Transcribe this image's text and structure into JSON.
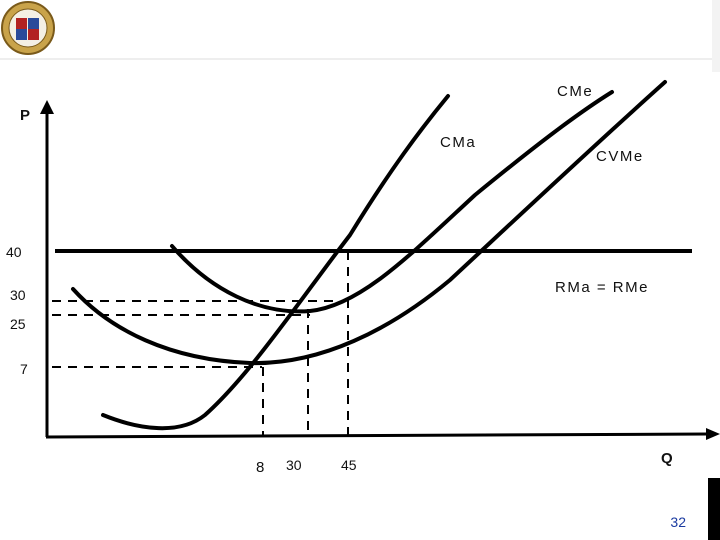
{
  "slide": {
    "page_number": "32",
    "logo": "university-seal-logo"
  },
  "diagram": {
    "axis_y_label": "P",
    "axis_x_label": "Q",
    "curves": {
      "cme_label": "CMe",
      "cma_label": "CMa",
      "cvme_label": "CVMe",
      "price_line_label": "RMa = RMe"
    },
    "price_ticks": [
      "40",
      "30",
      "25",
      "7"
    ],
    "quantity_ticks": [
      "8",
      "30",
      "45"
    ]
  },
  "colors": {
    "curve": "#000000",
    "page_number": "#1a3aa0"
  }
}
